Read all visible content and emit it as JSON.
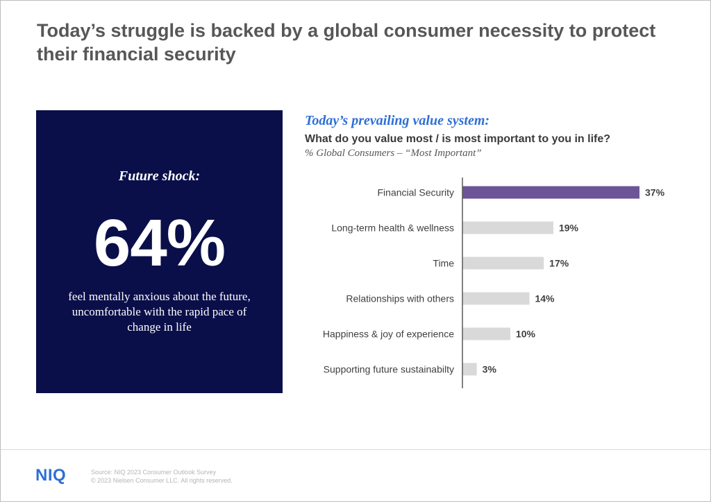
{
  "title": "Today’s struggle is backed by a global consumer necessity to protect their financial security",
  "stat_panel": {
    "label": "Future shock:",
    "value": "64%",
    "description": "feel mentally anxious about the future, uncomfortable with the rapid pace of change in life",
    "background_color": "#0a0f4a"
  },
  "chart_header": {
    "heading": "Today’s prevailing value system:",
    "question": "What do you value most / is most important to you in life?",
    "subtitle": "% Global Consumers – “Most Important”"
  },
  "chart_data": {
    "type": "bar",
    "orientation": "horizontal",
    "categories": [
      "Financial Security",
      "Long-term health & wellness",
      "Time",
      "Relationships with others",
      "Happiness & joy of experience",
      "Supporting future sustainabilty"
    ],
    "values": [
      37,
      19,
      17,
      14,
      10,
      3
    ],
    "data_labels": [
      "37%",
      "19%",
      "17%",
      "14%",
      "10%",
      "3%"
    ],
    "unit": "%",
    "xlim": [
      0,
      37
    ],
    "highlight_index": 0,
    "colors": {
      "highlight": "#6b5596",
      "default": "#d9d9d9",
      "axis": "#595959"
    },
    "grid": false,
    "legend": "none"
  },
  "footer": {
    "logo": "NIQ",
    "source": "Source: NIQ 2023 Consumer Outlook Survey",
    "copyright": "© 2023 Nielsen Consumer LLC. All rights reserved.",
    "logo_color": "#2f6fd6"
  }
}
